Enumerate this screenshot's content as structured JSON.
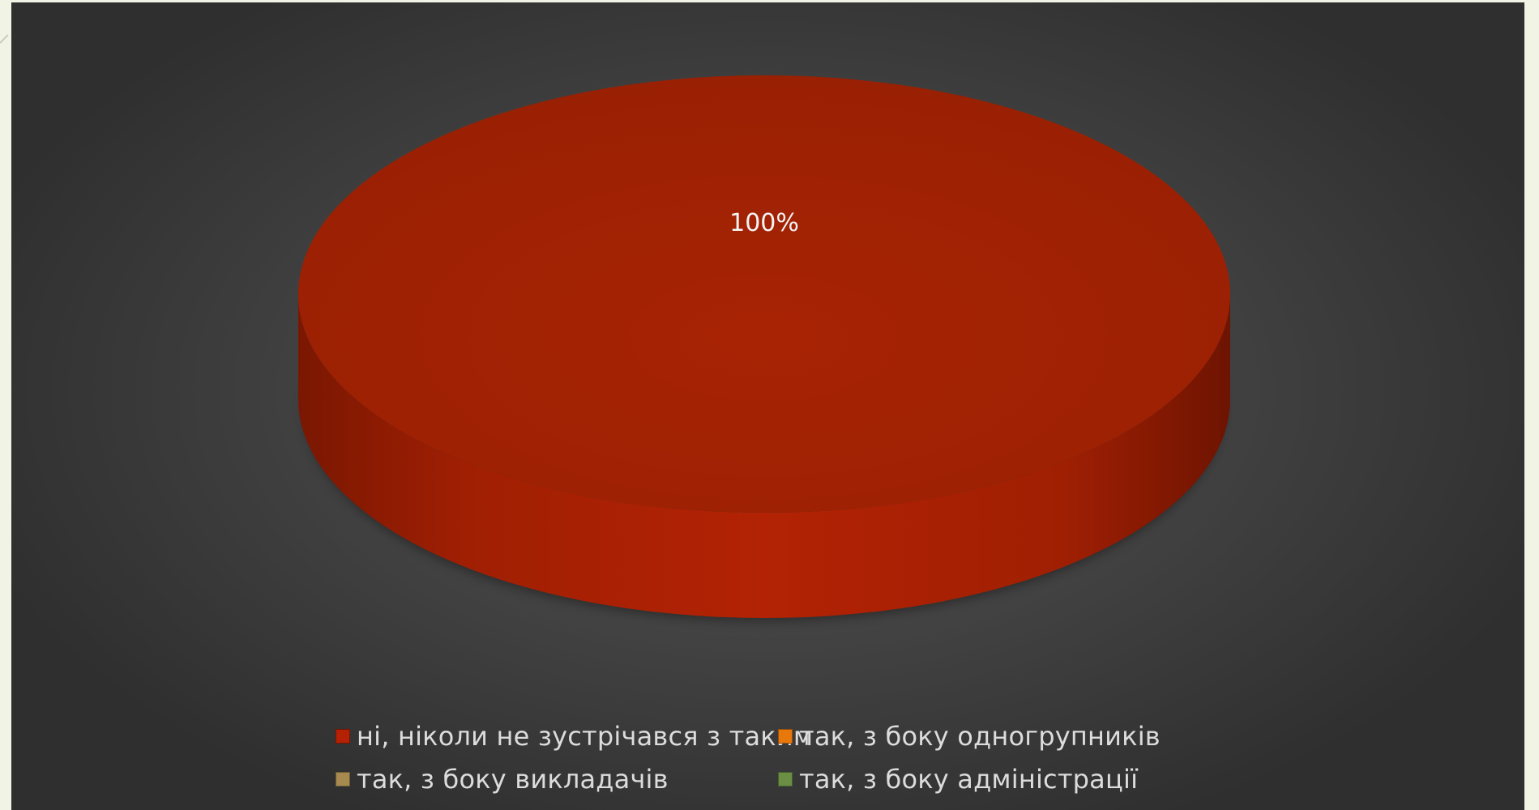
{
  "chart_data": {
    "type": "pie",
    "title": "",
    "categories": [
      "ні, ніколи не зустрічався з таким",
      "так, з боку одногрупників",
      "так, з боку викладачів",
      "так, з боку адміністрації"
    ],
    "values": [
      100,
      0,
      0,
      0
    ],
    "data_labels": [
      "100%"
    ],
    "colors": [
      "#b42104",
      "#e8780c",
      "#a68a4f",
      "#6a8f44"
    ],
    "legend_position": "bottom",
    "style": "3d-pie"
  }
}
